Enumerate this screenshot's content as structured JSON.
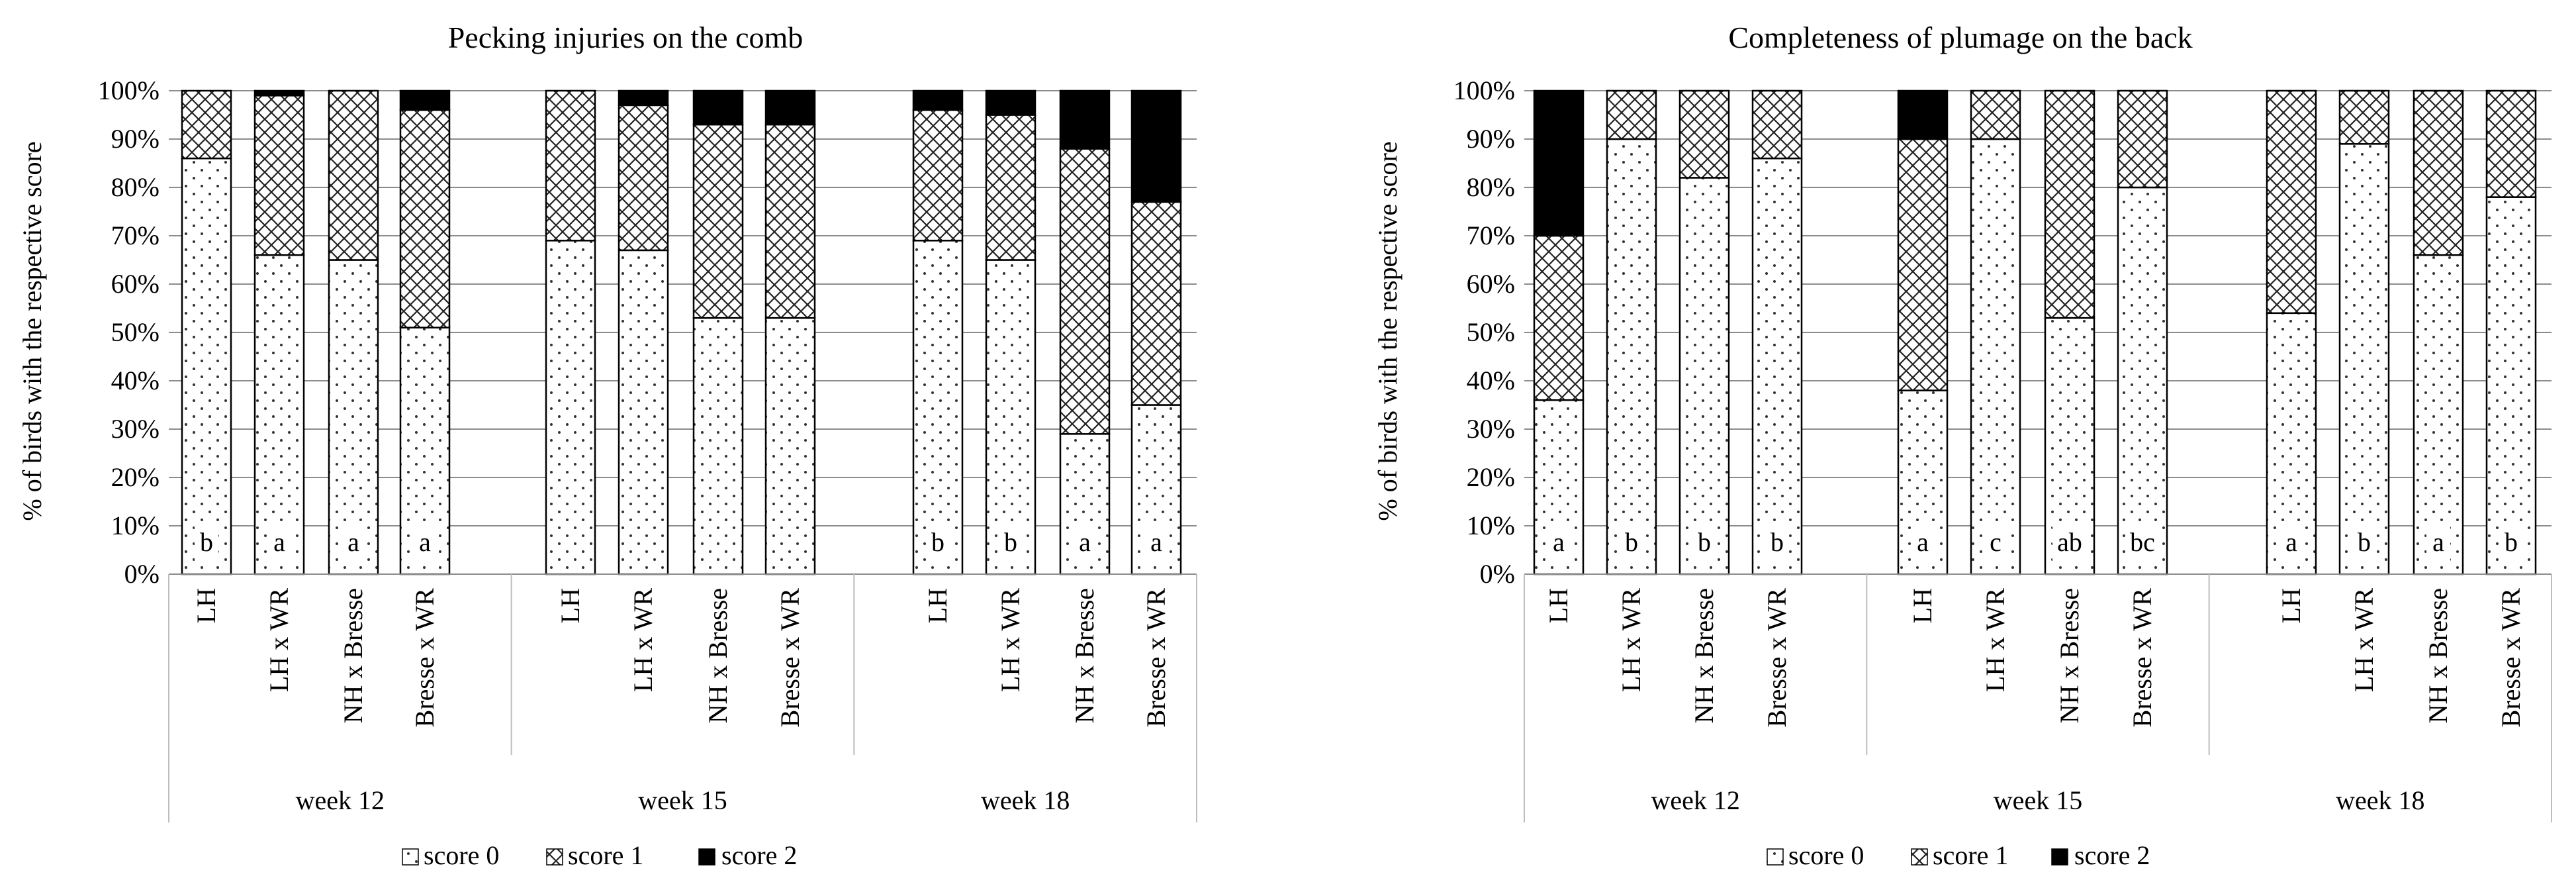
{
  "legend": {
    "score0": "score 0",
    "score1": "score 1",
    "score2": "score 2"
  },
  "chart_data": [
    {
      "type": "bar",
      "stacked": true,
      "title": "Pecking injuries on the comb",
      "ylabel": "% of birds with the respective score",
      "xlabel": "",
      "ylim": [
        0,
        100
      ],
      "yticks": [
        "0%",
        "10%",
        "20%",
        "30%",
        "40%",
        "50%",
        "60%",
        "70%",
        "80%",
        "90%",
        "100%"
      ],
      "legend_position": "bottom-center",
      "groups": [
        {
          "label": "week 12",
          "bars": [
            {
              "category": "LH",
              "score0": 86,
              "score1": 14,
              "score2": 0,
              "letter": "b"
            },
            {
              "category": "LH x WR",
              "score0": 66,
              "score1": 33,
              "score2": 1,
              "letter": "a"
            },
            {
              "category": "NH x Bresse",
              "score0": 65,
              "score1": 35,
              "score2": 0,
              "letter": "a"
            },
            {
              "category": "Bresse x WR",
              "score0": 51,
              "score1": 45,
              "score2": 4,
              "letter": "a"
            }
          ]
        },
        {
          "label": "week 15",
          "bars": [
            {
              "category": "LH",
              "score0": 69,
              "score1": 31,
              "score2": 0,
              "letter": ""
            },
            {
              "category": "LH x WR",
              "score0": 67,
              "score1": 30,
              "score2": 3,
              "letter": ""
            },
            {
              "category": "NH x Bresse",
              "score0": 53,
              "score1": 40,
              "score2": 7,
              "letter": ""
            },
            {
              "category": "Bresse x WR",
              "score0": 53,
              "score1": 40,
              "score2": 7,
              "letter": ""
            }
          ]
        },
        {
          "label": "week 18",
          "bars": [
            {
              "category": "LH",
              "score0": 69,
              "score1": 27,
              "score2": 4,
              "letter": "b"
            },
            {
              "category": "LH x WR",
              "score0": 65,
              "score1": 30,
              "score2": 5,
              "letter": "b"
            },
            {
              "category": "NH x Bresse",
              "score0": 29,
              "score1": 59,
              "score2": 12,
              "letter": "a"
            },
            {
              "category": "Bresse x WR",
              "score0": 35,
              "score1": 42,
              "score2": 23,
              "letter": "a"
            }
          ]
        }
      ]
    },
    {
      "type": "bar",
      "stacked": true,
      "title": "Completeness of plumage on the back",
      "ylabel": "% of birds with the respective score",
      "xlabel": "",
      "ylim": [
        0,
        100
      ],
      "yticks": [
        "0%",
        "10%",
        "20%",
        "30%",
        "40%",
        "50%",
        "60%",
        "70%",
        "80%",
        "90%",
        "100%"
      ],
      "legend_position": "bottom-center",
      "groups": [
        {
          "label": "week 12",
          "bars": [
            {
              "category": "LH",
              "score0": 36,
              "score1": 34,
              "score2": 30,
              "letter": "a"
            },
            {
              "category": "LH x WR",
              "score0": 90,
              "score1": 10,
              "score2": 0,
              "letter": "b"
            },
            {
              "category": "NH x Bresse",
              "score0": 82,
              "score1": 18,
              "score2": 0,
              "letter": "b"
            },
            {
              "category": "Bresse x WR",
              "score0": 86,
              "score1": 14,
              "score2": 0,
              "letter": "b"
            }
          ]
        },
        {
          "label": "week 15",
          "bars": [
            {
              "category": "LH",
              "score0": 38,
              "score1": 52,
              "score2": 10,
              "letter": "a"
            },
            {
              "category": "LH x WR",
              "score0": 90,
              "score1": 10,
              "score2": 0,
              "letter": "c"
            },
            {
              "category": "NH x Bresse",
              "score0": 53,
              "score1": 47,
              "score2": 0,
              "letter": "ab"
            },
            {
              "category": "Bresse x WR",
              "score0": 80,
              "score1": 20,
              "score2": 0,
              "letter": "bc"
            }
          ]
        },
        {
          "label": "week 18",
          "bars": [
            {
              "category": "LH",
              "score0": 54,
              "score1": 46,
              "score2": 0,
              "letter": "a"
            },
            {
              "category": "LH x WR",
              "score0": 89,
              "score1": 11,
              "score2": 0,
              "letter": "b"
            },
            {
              "category": "NH x Bresse",
              "score0": 66,
              "score1": 34,
              "score2": 0,
              "letter": "a"
            },
            {
              "category": "Bresse x WR",
              "score0": 78,
              "score1": 22,
              "score2": 0,
              "letter": "b"
            }
          ]
        }
      ]
    }
  ]
}
